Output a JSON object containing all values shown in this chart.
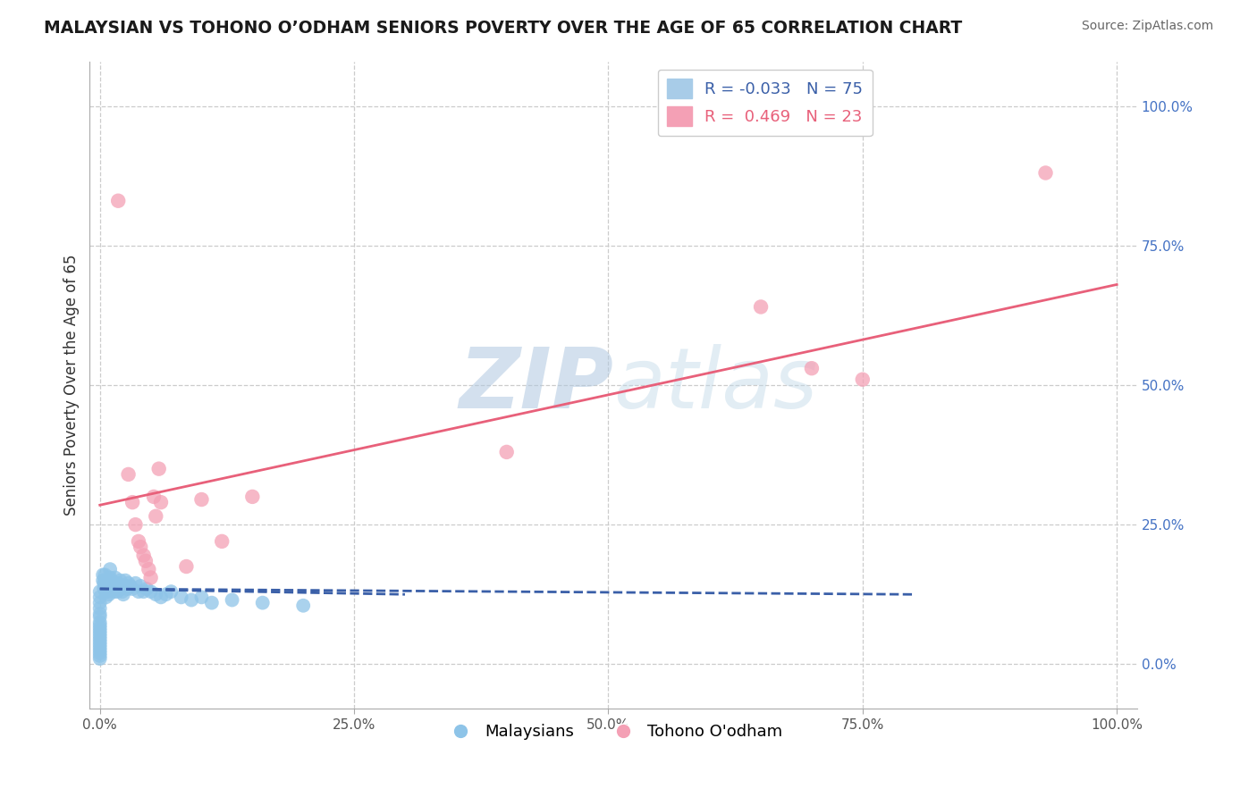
{
  "title": "MALAYSIAN VS TOHONO O’ODHAM SENIORS POVERTY OVER THE AGE OF 65 CORRELATION CHART",
  "source": "Source: ZipAtlas.com",
  "ylabel": "Seniors Poverty Over the Age of 65",
  "background_color": "#ffffff",
  "malaysian_color": "#8ec4e8",
  "tohono_color": "#f4a0b5",
  "malaysian_line_color": "#3a5fa8",
  "tohono_line_color": "#e8607a",
  "grid_color": "#cccccc",
  "r_malaysian": -0.033,
  "n_malaysian": 75,
  "r_tohono": 0.469,
  "n_tohono": 23,
  "malaysian_x": [
    0.0,
    0.0,
    0.0,
    0.0,
    0.0,
    0.0,
    0.0,
    0.0,
    0.0,
    0.0,
    0.0,
    0.0,
    0.0,
    0.0,
    0.0,
    0.0,
    0.0,
    0.0,
    0.0,
    0.0,
    0.003,
    0.003,
    0.004,
    0.004,
    0.005,
    0.005,
    0.005,
    0.006,
    0.006,
    0.007,
    0.007,
    0.008,
    0.008,
    0.009,
    0.01,
    0.01,
    0.01,
    0.011,
    0.012,
    0.013,
    0.014,
    0.015,
    0.015,
    0.016,
    0.017,
    0.018,
    0.019,
    0.02,
    0.02,
    0.021,
    0.022,
    0.023,
    0.025,
    0.025,
    0.027,
    0.028,
    0.03,
    0.032,
    0.035,
    0.038,
    0.04,
    0.043,
    0.046,
    0.05,
    0.055,
    0.06,
    0.065,
    0.07,
    0.08,
    0.09,
    0.1,
    0.11,
    0.13,
    0.16,
    0.2
  ],
  "malaysian_y": [
    0.13,
    0.12,
    0.11,
    0.1,
    0.09,
    0.085,
    0.075,
    0.07,
    0.065,
    0.06,
    0.055,
    0.05,
    0.045,
    0.04,
    0.035,
    0.03,
    0.025,
    0.02,
    0.015,
    0.01,
    0.16,
    0.15,
    0.145,
    0.135,
    0.16,
    0.15,
    0.14,
    0.13,
    0.12,
    0.14,
    0.13,
    0.145,
    0.135,
    0.125,
    0.17,
    0.155,
    0.145,
    0.15,
    0.14,
    0.135,
    0.13,
    0.155,
    0.145,
    0.14,
    0.13,
    0.145,
    0.135,
    0.15,
    0.14,
    0.135,
    0.13,
    0.125,
    0.15,
    0.14,
    0.135,
    0.145,
    0.14,
    0.135,
    0.145,
    0.13,
    0.14,
    0.13,
    0.135,
    0.13,
    0.125,
    0.12,
    0.125,
    0.13,
    0.12,
    0.115,
    0.12,
    0.11,
    0.115,
    0.11,
    0.105
  ],
  "tohono_x": [
    0.018,
    0.028,
    0.032,
    0.035,
    0.038,
    0.04,
    0.043,
    0.045,
    0.048,
    0.05,
    0.053,
    0.055,
    0.058,
    0.06,
    0.085,
    0.1,
    0.12,
    0.15,
    0.4,
    0.65,
    0.7,
    0.75,
    0.93
  ],
  "tohono_y": [
    0.83,
    0.34,
    0.29,
    0.25,
    0.22,
    0.21,
    0.195,
    0.185,
    0.17,
    0.155,
    0.3,
    0.265,
    0.35,
    0.29,
    0.175,
    0.295,
    0.22,
    0.3,
    0.38,
    0.64,
    0.53,
    0.51,
    0.88
  ],
  "xlim": [
    -0.01,
    1.02
  ],
  "ylim": [
    -0.08,
    1.08
  ],
  "xticks": [
    0.0,
    0.25,
    0.5,
    0.75,
    1.0
  ],
  "xticklabels": [
    "0.0%",
    "25.0%",
    "50.0%",
    "75.0%",
    "100.0%"
  ],
  "yticks_right": [
    0.0,
    0.25,
    0.5,
    0.75,
    1.0
  ],
  "yticklabels_right": [
    "0.0%",
    "25.0%",
    "50.0%",
    "75.0%",
    "100.0%"
  ],
  "malaysian_line_x": [
    0.0,
    0.3
  ],
  "tohono_line_x": [
    0.0,
    1.0
  ],
  "tohono_line_y0": 0.285,
  "tohono_line_y1": 0.68,
  "malaysian_line_y0": 0.135,
  "malaysian_line_y1": 0.125
}
